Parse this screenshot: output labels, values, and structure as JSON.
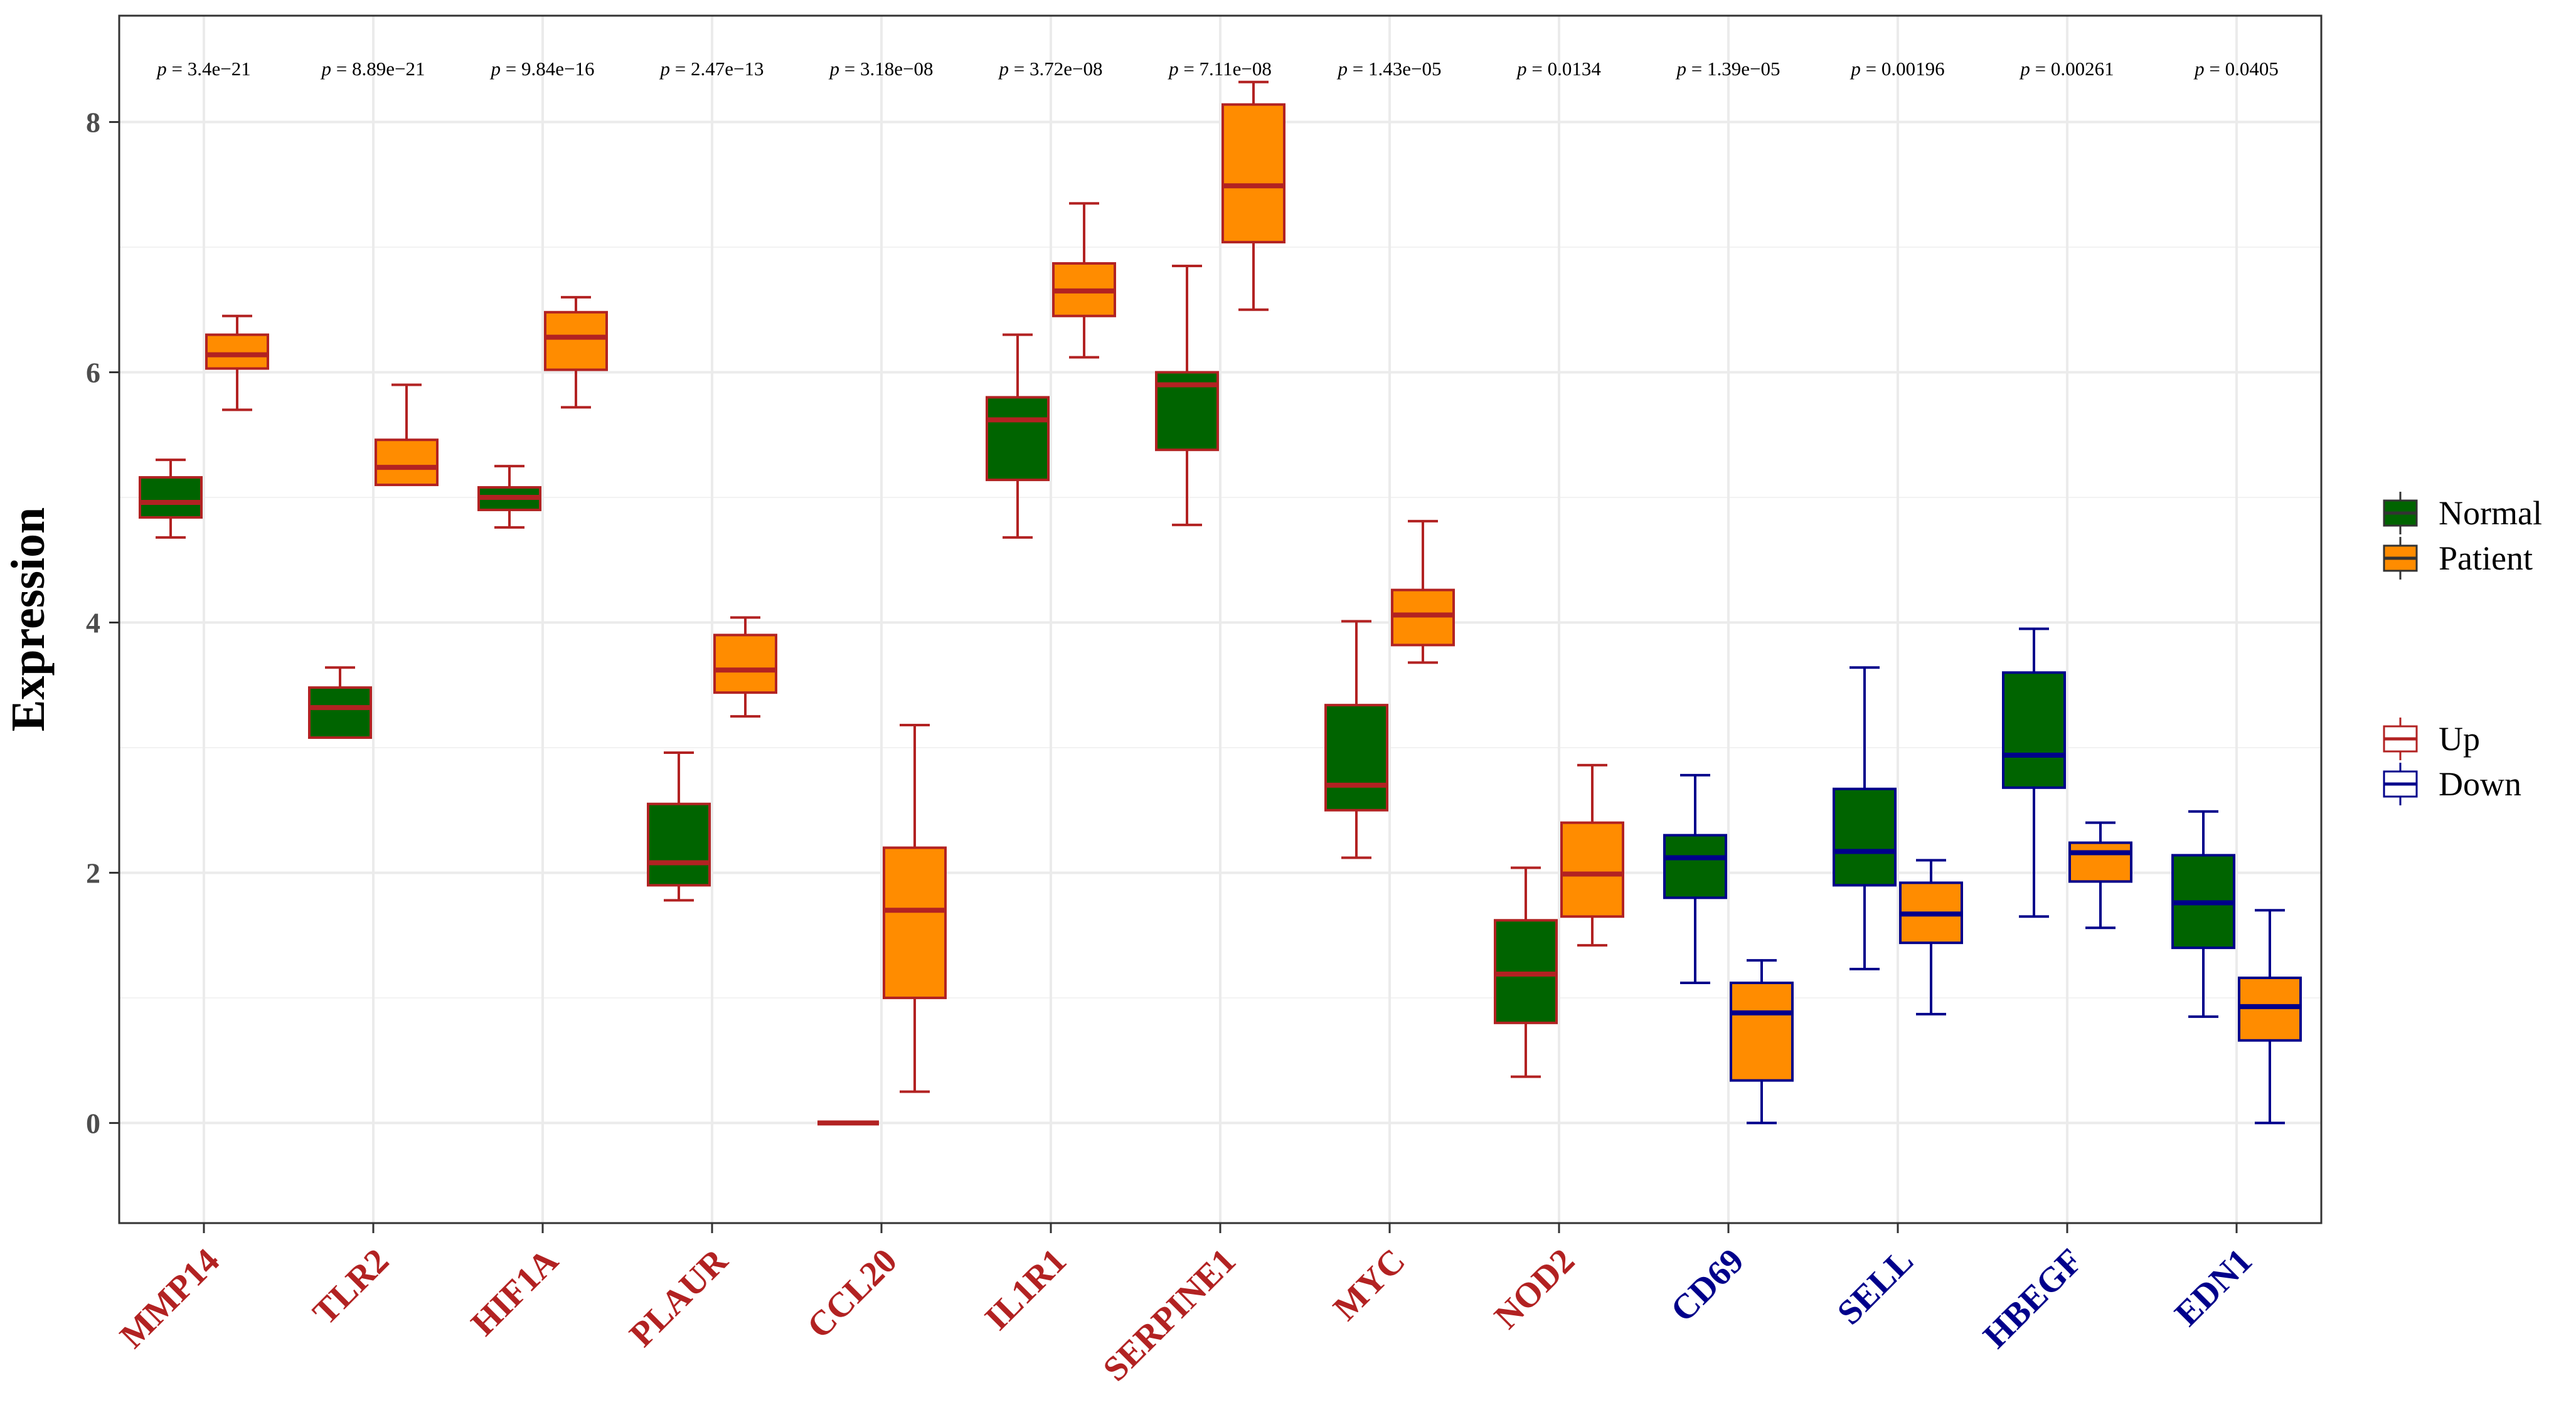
{
  "chart_data": {
    "type": "boxplot",
    "ylabel": "Expression",
    "xlabel": "",
    "ylim": [
      -0.8,
      8.85
    ],
    "yticks": [
      0,
      2,
      4,
      6,
      8
    ],
    "grid": true,
    "legend_fill": {
      "title": "",
      "items": [
        {
          "label": "Normal",
          "color": "#006400"
        },
        {
          "label": "Patient",
          "color": "#FF8C00"
        }
      ]
    },
    "legend_color": {
      "title": "",
      "items": [
        {
          "label": "Up",
          "color": "#B22222"
        },
        {
          "label": "Down",
          "color": "#00008B"
        }
      ]
    },
    "p_prefix": "p",
    "genes": [
      {
        "name": "MMP14",
        "direction": "Up",
        "p": "= 3.4e−21",
        "normal": {
          "min": 4.68,
          "q1": 4.84,
          "median": 4.96,
          "q3": 5.16,
          "max": 5.3
        },
        "patient": {
          "min": 5.7,
          "q1": 6.03,
          "median": 6.14,
          "q3": 6.3,
          "max": 6.45
        }
      },
      {
        "name": "TLR2",
        "direction": "Up",
        "p": "= 8.89e−21",
        "normal": {
          "min": 3.08,
          "q1": 3.08,
          "median": 3.32,
          "q3": 3.48,
          "max": 3.64
        },
        "patient": {
          "min": 5.1,
          "q1": 5.1,
          "median": 5.24,
          "q3": 5.46,
          "max": 5.9
        }
      },
      {
        "name": "HIF1A",
        "direction": "Up",
        "p": "= 9.84e−16",
        "normal": {
          "min": 4.76,
          "q1": 4.9,
          "median": 5.0,
          "q3": 5.08,
          "max": 5.25
        },
        "patient": {
          "min": 5.72,
          "q1": 6.02,
          "median": 6.28,
          "q3": 6.48,
          "max": 6.6
        }
      },
      {
        "name": "PLAUR",
        "direction": "Up",
        "p": "= 2.47e−13",
        "normal": {
          "min": 1.78,
          "q1": 1.9,
          "median": 2.08,
          "q3": 2.55,
          "max": 2.96
        },
        "patient": {
          "min": 3.25,
          "q1": 3.44,
          "median": 3.62,
          "q3": 3.9,
          "max": 4.04
        }
      },
      {
        "name": "CCL20",
        "direction": "Up",
        "p": "= 3.18e−08",
        "normal": {
          "min": 0.0,
          "q1": 0.0,
          "median": 0.0,
          "q3": 0.0,
          "max": 0.0
        },
        "patient": {
          "min": 0.25,
          "q1": 1.0,
          "median": 1.7,
          "q3": 2.2,
          "max": 3.18
        }
      },
      {
        "name": "IL1R1",
        "direction": "Up",
        "p": "= 3.72e−08",
        "normal": {
          "min": 4.68,
          "q1": 5.14,
          "median": 5.62,
          "q3": 5.8,
          "max": 6.3
        },
        "patient": {
          "min": 6.12,
          "q1": 6.45,
          "median": 6.65,
          "q3": 6.87,
          "max": 7.35
        }
      },
      {
        "name": "SERPINE1",
        "direction": "Up",
        "p": "= 7.11e−08",
        "normal": {
          "min": 4.78,
          "q1": 5.38,
          "median": 5.9,
          "q3": 6.0,
          "max": 6.85
        },
        "patient": {
          "min": 6.5,
          "q1": 7.04,
          "median": 7.49,
          "q3": 8.14,
          "max": 8.32
        }
      },
      {
        "name": "MYC",
        "direction": "Up",
        "p": "= 1.43e−05",
        "normal": {
          "min": 2.12,
          "q1": 2.5,
          "median": 2.7,
          "q3": 3.34,
          "max": 4.01
        },
        "patient": {
          "min": 3.68,
          "q1": 3.82,
          "median": 4.06,
          "q3": 4.26,
          "max": 4.81
        }
      },
      {
        "name": "NOD2",
        "direction": "Up",
        "p": "= 0.0134",
        "normal": {
          "min": 0.37,
          "q1": 0.8,
          "median": 1.19,
          "q3": 1.62,
          "max": 2.04
        },
        "patient": {
          "min": 1.42,
          "q1": 1.65,
          "median": 1.99,
          "q3": 2.4,
          "max": 2.86
        }
      },
      {
        "name": "CD69",
        "direction": "Down",
        "p": "= 1.39e−05",
        "normal": {
          "min": 1.12,
          "q1": 1.8,
          "median": 2.12,
          "q3": 2.3,
          "max": 2.78
        },
        "patient": {
          "min": 0.0,
          "q1": 0.34,
          "median": 0.88,
          "q3": 1.12,
          "max": 1.3
        }
      },
      {
        "name": "SELL",
        "direction": "Down",
        "p": "= 0.00196",
        "normal": {
          "min": 1.23,
          "q1": 1.9,
          "median": 2.17,
          "q3": 2.67,
          "max": 3.64
        },
        "patient": {
          "min": 0.87,
          "q1": 1.44,
          "median": 1.67,
          "q3": 1.92,
          "max": 2.1
        }
      },
      {
        "name": "HBEGF",
        "direction": "Down",
        "p": "= 0.00261",
        "normal": {
          "min": 1.65,
          "q1": 2.68,
          "median": 2.94,
          "q3": 3.6,
          "max": 3.95
        },
        "patient": {
          "min": 1.56,
          "q1": 1.93,
          "median": 2.16,
          "q3": 2.24,
          "max": 2.4
        }
      },
      {
        "name": "EDN1",
        "direction": "Down",
        "p": "= 0.0405",
        "normal": {
          "min": 0.85,
          "q1": 1.4,
          "median": 1.76,
          "q3": 2.14,
          "max": 2.49
        },
        "patient": {
          "min": 0.0,
          "q1": 0.66,
          "median": 0.93,
          "q3": 1.16,
          "max": 1.7
        }
      }
    ]
  }
}
